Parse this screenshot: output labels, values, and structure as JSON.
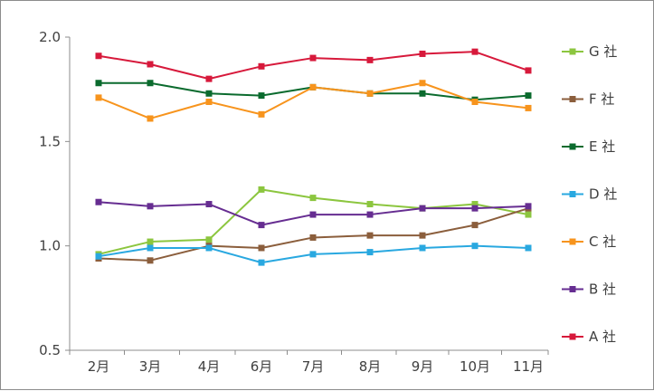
{
  "chart_data": {
    "type": "line",
    "title": "",
    "xlabel": "",
    "ylabel": "",
    "ylim": [
      0.5,
      2.0
    ],
    "yticks": [
      "0.5",
      "1.0",
      "1.5",
      "2.0"
    ],
    "categories": [
      "2月",
      "3月",
      "4月",
      "6月",
      "7月",
      "8月",
      "9月",
      "10月",
      "11月"
    ],
    "legend_position": "right",
    "series": [
      {
        "name": "G 社",
        "color": "#8cc63f",
        "values": [
          0.96,
          1.02,
          1.03,
          1.27,
          1.23,
          1.2,
          1.18,
          1.2,
          1.15
        ]
      },
      {
        "name": "F 社",
        "color": "#8b5e3c",
        "values": [
          0.94,
          0.93,
          1.0,
          0.99,
          1.04,
          1.05,
          1.05,
          1.1,
          1.18
        ]
      },
      {
        "name": "E 社",
        "color": "#0b6b2e",
        "values": [
          1.78,
          1.78,
          1.73,
          1.72,
          1.76,
          1.73,
          1.73,
          1.7,
          1.72
        ]
      },
      {
        "name": "D 社",
        "color": "#29a8e0",
        "values": [
          0.95,
          0.99,
          0.99,
          0.92,
          0.96,
          0.97,
          0.99,
          1.0,
          0.99
        ]
      },
      {
        "name": "C 社",
        "color": "#f7941d",
        "values": [
          1.71,
          1.61,
          1.69,
          1.63,
          1.76,
          1.73,
          1.78,
          1.69,
          1.66
        ]
      },
      {
        "name": "B 社",
        "color": "#662d91",
        "values": [
          1.21,
          1.19,
          1.2,
          1.1,
          1.15,
          1.15,
          1.18,
          1.18,
          1.19
        ]
      },
      {
        "name": "A 社",
        "color": "#d7193b",
        "values": [
          1.91,
          1.87,
          1.8,
          1.86,
          1.9,
          1.89,
          1.92,
          1.93,
          1.84
        ]
      }
    ]
  }
}
